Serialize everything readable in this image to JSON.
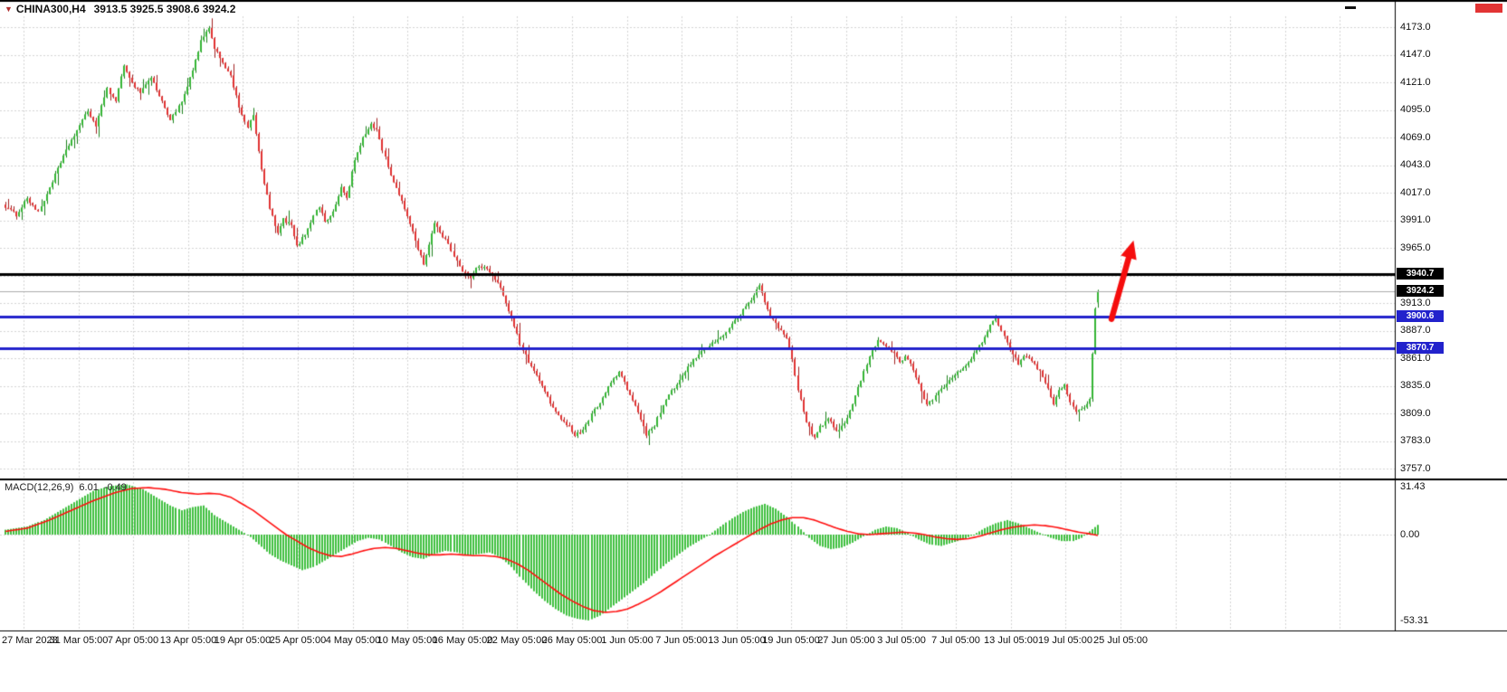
{
  "window": {
    "dropdown_icon": "▼",
    "symbol": "CHINA300,H4",
    "ohlc": "3913.5 3925.5 3908.6 3924.2"
  },
  "colors": {
    "bull_body": "#35b535",
    "bull_wick": "#1d801d",
    "bear_body": "#e03232",
    "bear_wick": "#a02222",
    "grid": "#d4d4d4",
    "black_line": "#000000",
    "blue_line": "#2222cc",
    "bid_line": "#ababab",
    "histogram": "#3fbf3f",
    "signal_line": "#ff0f0f",
    "arrow": "#f50d0d",
    "tag_black_bg": "#000000",
    "tag_blue_bg": "#2222cc"
  },
  "price_axis": {
    "ticks": [
      4173.0,
      4147.0,
      4121.0,
      4095.0,
      4069.0,
      4043.0,
      4017.0,
      3991.0,
      3965.0,
      3913.0,
      3887.0,
      3861.0,
      3835.0,
      3809.0,
      3783.0,
      3757.0
    ],
    "tags": [
      {
        "price": 3940.7,
        "style": "black"
      },
      {
        "price": 3924.2,
        "style": "black"
      },
      {
        "price": 3900.6,
        "style": "blue"
      },
      {
        "price": 3870.7,
        "style": "blue"
      }
    ]
  },
  "time_axis": {
    "labels": [
      "27 Mar 2023",
      "31 Mar 05:00",
      "7 Apr 05:00",
      "13 Apr 05:00",
      "19 Apr 05:00",
      "25 Apr 05:00",
      "4 May 05:00",
      "10 May 05:00",
      "16 May 05:00",
      "22 May 05:00",
      "26 May 05:00",
      "1 Jun 05:00",
      "7 Jun 05:00",
      "13 Jun 05:00",
      "19 Jun 05:00",
      "27 Jun 05:00",
      "3 Jul 05:00",
      "7 Jul 05:00",
      "13 Jul 05:00",
      "19 Jul 05:00",
      "25 Jul 05:00"
    ]
  },
  "macd": {
    "name": "MACD(12,26,9)",
    "main": "6.01",
    "signal": "-0.49",
    "axis": [
      31.43,
      0,
      -53.31
    ]
  },
  "chart_data": {
    "type": "candlestick",
    "symbol": "CHINA300",
    "timeframe": "H4",
    "bars": 398,
    "price_range": [
      3757.0,
      4173.0
    ],
    "grid_step": 26.0,
    "last": {
      "open": 3913.5,
      "high": 3925.5,
      "low": 3908.6,
      "close": 3924.2
    },
    "horizontal_lines": [
      {
        "price": 3940.7,
        "color": "black"
      },
      {
        "price": 3900.6,
        "color": "blue"
      },
      {
        "price": 3870.7,
        "color": "blue"
      }
    ],
    "bid_price": 3924.2,
    "close_waypoints": [
      [
        0,
        4004
      ],
      [
        4,
        3996
      ],
      [
        8,
        4012
      ],
      [
        12,
        3998
      ],
      [
        17,
        4028
      ],
      [
        23,
        4062
      ],
      [
        30,
        4094
      ],
      [
        33,
        4080
      ],
      [
        37,
        4116
      ],
      [
        40,
        4102
      ],
      [
        43,
        4138
      ],
      [
        46,
        4120
      ],
      [
        49,
        4112
      ],
      [
        53,
        4126
      ],
      [
        56,
        4108
      ],
      [
        60,
        4086
      ],
      [
        64,
        4102
      ],
      [
        68,
        4132
      ],
      [
        71,
        4160
      ],
      [
        74,
        4171
      ],
      [
        76,
        4154
      ],
      [
        79,
        4140
      ],
      [
        82,
        4126
      ],
      [
        85,
        4098
      ],
      [
        88,
        4078
      ],
      [
        90,
        4090
      ],
      [
        93,
        4038
      ],
      [
        96,
        4002
      ],
      [
        99,
        3978
      ],
      [
        101,
        3992
      ],
      [
        104,
        3986
      ],
      [
        106,
        3966
      ],
      [
        109,
        3978
      ],
      [
        112,
        3996
      ],
      [
        114,
        4004
      ],
      [
        116,
        3990
      ],
      [
        119,
        3998
      ],
      [
        122,
        4022
      ],
      [
        124,
        4012
      ],
      [
        127,
        4048
      ],
      [
        130,
        4068
      ],
      [
        133,
        4082
      ],
      [
        135,
        4076
      ],
      [
        137,
        4058
      ],
      [
        140,
        4034
      ],
      [
        143,
        4014
      ],
      [
        146,
        3996
      ],
      [
        149,
        3972
      ],
      [
        152,
        3950
      ],
      [
        154,
        3968
      ],
      [
        156,
        3988
      ],
      [
        158,
        3980
      ],
      [
        161,
        3968
      ],
      [
        163,
        3958
      ],
      [
        166,
        3944
      ],
      [
        169,
        3936
      ],
      [
        171,
        3946
      ],
      [
        174,
        3948
      ],
      [
        177,
        3938
      ],
      [
        180,
        3928
      ],
      [
        183,
        3906
      ],
      [
        185,
        3892
      ],
      [
        187,
        3874
      ],
      [
        190,
        3858
      ],
      [
        193,
        3844
      ],
      [
        196,
        3830
      ],
      [
        199,
        3814
      ],
      [
        202,
        3802
      ],
      [
        205,
        3798
      ],
      [
        207,
        3788
      ],
      [
        210,
        3794
      ],
      [
        213,
        3808
      ],
      [
        216,
        3820
      ],
      [
        220,
        3838
      ],
      [
        223,
        3848
      ],
      [
        226,
        3832
      ],
      [
        229,
        3816
      ],
      [
        231,
        3804
      ],
      [
        233,
        3788
      ],
      [
        236,
        3798
      ],
      [
        239,
        3816
      ],
      [
        242,
        3830
      ],
      [
        245,
        3840
      ],
      [
        248,
        3852
      ],
      [
        251,
        3862
      ],
      [
        255,
        3872
      ],
      [
        259,
        3878
      ],
      [
        262,
        3886
      ],
      [
        265,
        3896
      ],
      [
        268,
        3906
      ],
      [
        271,
        3916
      ],
      [
        274,
        3930
      ],
      [
        276,
        3914
      ],
      [
        278,
        3900
      ],
      [
        281,
        3890
      ],
      [
        284,
        3880
      ],
      [
        286,
        3860
      ],
      [
        288,
        3832
      ],
      [
        291,
        3800
      ],
      [
        294,
        3786
      ],
      [
        296,
        3796
      ],
      [
        299,
        3804
      ],
      [
        302,
        3792
      ],
      [
        305,
        3800
      ],
      [
        308,
        3818
      ],
      [
        311,
        3840
      ],
      [
        314,
        3864
      ],
      [
        317,
        3878
      ],
      [
        320,
        3872
      ],
      [
        323,
        3866
      ],
      [
        325,
        3856
      ],
      [
        327,
        3864
      ],
      [
        329,
        3856
      ],
      [
        332,
        3836
      ],
      [
        335,
        3816
      ],
      [
        338,
        3826
      ],
      [
        341,
        3834
      ],
      [
        344,
        3844
      ],
      [
        347,
        3850
      ],
      [
        350,
        3858
      ],
      [
        353,
        3868
      ],
      [
        356,
        3880
      ],
      [
        358,
        3894
      ],
      [
        360,
        3898
      ],
      [
        362,
        3888
      ],
      [
        365,
        3870
      ],
      [
        368,
        3856
      ],
      [
        370,
        3864
      ],
      [
        373,
        3858
      ],
      [
        376,
        3848
      ],
      [
        378,
        3838
      ],
      [
        381,
        3818
      ],
      [
        383,
        3830
      ],
      [
        385,
        3836
      ],
      [
        387,
        3820
      ],
      [
        389,
        3810
      ],
      [
        392,
        3816
      ],
      [
        394,
        3822
      ],
      [
        395,
        3864
      ],
      [
        396,
        3908
      ],
      [
        397,
        3924.2
      ]
    ],
    "indicator": {
      "type": "MACD",
      "params": [
        12,
        26,
        9
      ],
      "last_main": 6.01,
      "last_signal": -0.49,
      "scale": [
        -53.31,
        31.43
      ],
      "histogram_waypoints": [
        [
          0,
          3
        ],
        [
          8,
          5
        ],
        [
          14,
          9
        ],
        [
          20,
          15
        ],
        [
          26,
          21
        ],
        [
          32,
          27
        ],
        [
          38,
          30
        ],
        [
          44,
          31
        ],
        [
          50,
          28
        ],
        [
          56,
          22
        ],
        [
          60,
          18
        ],
        [
          64,
          15
        ],
        [
          68,
          17
        ],
        [
          72,
          18
        ],
        [
          76,
          12
        ],
        [
          80,
          8
        ],
        [
          84,
          4
        ],
        [
          88,
          0
        ],
        [
          92,
          -6
        ],
        [
          96,
          -12
        ],
        [
          100,
          -16
        ],
        [
          104,
          -19
        ],
        [
          108,
          -22
        ],
        [
          112,
          -20
        ],
        [
          116,
          -16
        ],
        [
          120,
          -12
        ],
        [
          124,
          -8
        ],
        [
          128,
          -4
        ],
        [
          132,
          -2
        ],
        [
          136,
          -3
        ],
        [
          140,
          -7
        ],
        [
          144,
          -11
        ],
        [
          148,
          -14
        ],
        [
          152,
          -15
        ],
        [
          156,
          -12
        ],
        [
          160,
          -10
        ],
        [
          164,
          -11
        ],
        [
          168,
          -13
        ],
        [
          172,
          -12
        ],
        [
          176,
          -11
        ],
        [
          180,
          -14
        ],
        [
          184,
          -20
        ],
        [
          188,
          -28
        ],
        [
          192,
          -35
        ],
        [
          196,
          -41
        ],
        [
          200,
          -46
        ],
        [
          204,
          -50
        ],
        [
          208,
          -52
        ],
        [
          212,
          -53
        ],
        [
          216,
          -50
        ],
        [
          220,
          -45
        ],
        [
          224,
          -40
        ],
        [
          228,
          -35
        ],
        [
          232,
          -30
        ],
        [
          236,
          -24
        ],
        [
          240,
          -18
        ],
        [
          244,
          -13
        ],
        [
          248,
          -8
        ],
        [
          252,
          -4
        ],
        [
          256,
          0
        ],
        [
          260,
          5
        ],
        [
          264,
          10
        ],
        [
          268,
          14
        ],
        [
          272,
          17
        ],
        [
          276,
          19
        ],
        [
          280,
          16
        ],
        [
          284,
          11
        ],
        [
          288,
          5
        ],
        [
          292,
          -2
        ],
        [
          296,
          -7
        ],
        [
          300,
          -9
        ],
        [
          304,
          -8
        ],
        [
          308,
          -5
        ],
        [
          312,
          -1
        ],
        [
          316,
          3
        ],
        [
          320,
          5
        ],
        [
          324,
          4
        ],
        [
          328,
          1
        ],
        [
          332,
          -3
        ],
        [
          336,
          -6
        ],
        [
          340,
          -7
        ],
        [
          344,
          -5
        ],
        [
          348,
          -3
        ],
        [
          352,
          0
        ],
        [
          356,
          4
        ],
        [
          360,
          7
        ],
        [
          364,
          9
        ],
        [
          368,
          7
        ],
        [
          372,
          4
        ],
        [
          376,
          1
        ],
        [
          380,
          -2
        ],
        [
          384,
          -4
        ],
        [
          388,
          -4
        ],
        [
          391,
          -2
        ],
        [
          394,
          2
        ],
        [
          397,
          6.01
        ]
      ],
      "signal_waypoints": [
        [
          0,
          2
        ],
        [
          8,
          4
        ],
        [
          16,
          9
        ],
        [
          24,
          15
        ],
        [
          32,
          21
        ],
        [
          40,
          26
        ],
        [
          46,
          28.5
        ],
        [
          52,
          29
        ],
        [
          58,
          28
        ],
        [
          64,
          26
        ],
        [
          70,
          25
        ],
        [
          74,
          25.5
        ],
        [
          78,
          25
        ],
        [
          82,
          23
        ],
        [
          86,
          19
        ],
        [
          90,
          15
        ],
        [
          94,
          10
        ],
        [
          98,
          5
        ],
        [
          102,
          0
        ],
        [
          106,
          -4
        ],
        [
          110,
          -8
        ],
        [
          114,
          -11
        ],
        [
          118,
          -13
        ],
        [
          122,
          -13.5
        ],
        [
          126,
          -12
        ],
        [
          130,
          -10
        ],
        [
          134,
          -8.5
        ],
        [
          138,
          -8
        ],
        [
          142,
          -8.5
        ],
        [
          146,
          -10
        ],
        [
          150,
          -11.5
        ],
        [
          154,
          -12.5
        ],
        [
          158,
          -12.5
        ],
        [
          162,
          -12
        ],
        [
          166,
          -12.5
        ],
        [
          170,
          -13
        ],
        [
          174,
          -13
        ],
        [
          178,
          -13.5
        ],
        [
          182,
          -15
        ],
        [
          186,
          -18
        ],
        [
          190,
          -22
        ],
        [
          194,
          -27
        ],
        [
          198,
          -32
        ],
        [
          202,
          -37
        ],
        [
          206,
          -41
        ],
        [
          210,
          -44.5
        ],
        [
          214,
          -47
        ],
        [
          218,
          -48
        ],
        [
          222,
          -47.5
        ],
        [
          226,
          -46
        ],
        [
          230,
          -43
        ],
        [
          234,
          -39.5
        ],
        [
          238,
          -35.5
        ],
        [
          242,
          -31
        ],
        [
          246,
          -26.5
        ],
        [
          250,
          -22
        ],
        [
          254,
          -17.5
        ],
        [
          258,
          -13
        ],
        [
          262,
          -9
        ],
        [
          266,
          -5
        ],
        [
          270,
          -1
        ],
        [
          274,
          3
        ],
        [
          278,
          6.5
        ],
        [
          282,
          9
        ],
        [
          286,
          10.5
        ],
        [
          290,
          10.5
        ],
        [
          294,
          9
        ],
        [
          298,
          6.5
        ],
        [
          302,
          4
        ],
        [
          306,
          2
        ],
        [
          310,
          0.5
        ],
        [
          314,
          0
        ],
        [
          318,
          0.5
        ],
        [
          322,
          1
        ],
        [
          326,
          1.5
        ],
        [
          330,
          1
        ],
        [
          334,
          0
        ],
        [
          338,
          -1.5
        ],
        [
          342,
          -2.5
        ],
        [
          346,
          -3
        ],
        [
          350,
          -2.5
        ],
        [
          354,
          -1
        ],
        [
          358,
          1
        ],
        [
          362,
          3
        ],
        [
          366,
          4.5
        ],
        [
          370,
          5.5
        ],
        [
          374,
          6
        ],
        [
          378,
          5.5
        ],
        [
          382,
          4.5
        ],
        [
          386,
          3
        ],
        [
          390,
          1.5
        ],
        [
          394,
          0.5
        ],
        [
          397,
          -0.49
        ]
      ]
    },
    "annotation_arrow": {
      "from_bar": 402,
      "from_price": 3898,
      "to_bar": 410,
      "to_price": 3972,
      "color": "red",
      "meaning": "projected-up-move-to-black-line"
    }
  }
}
